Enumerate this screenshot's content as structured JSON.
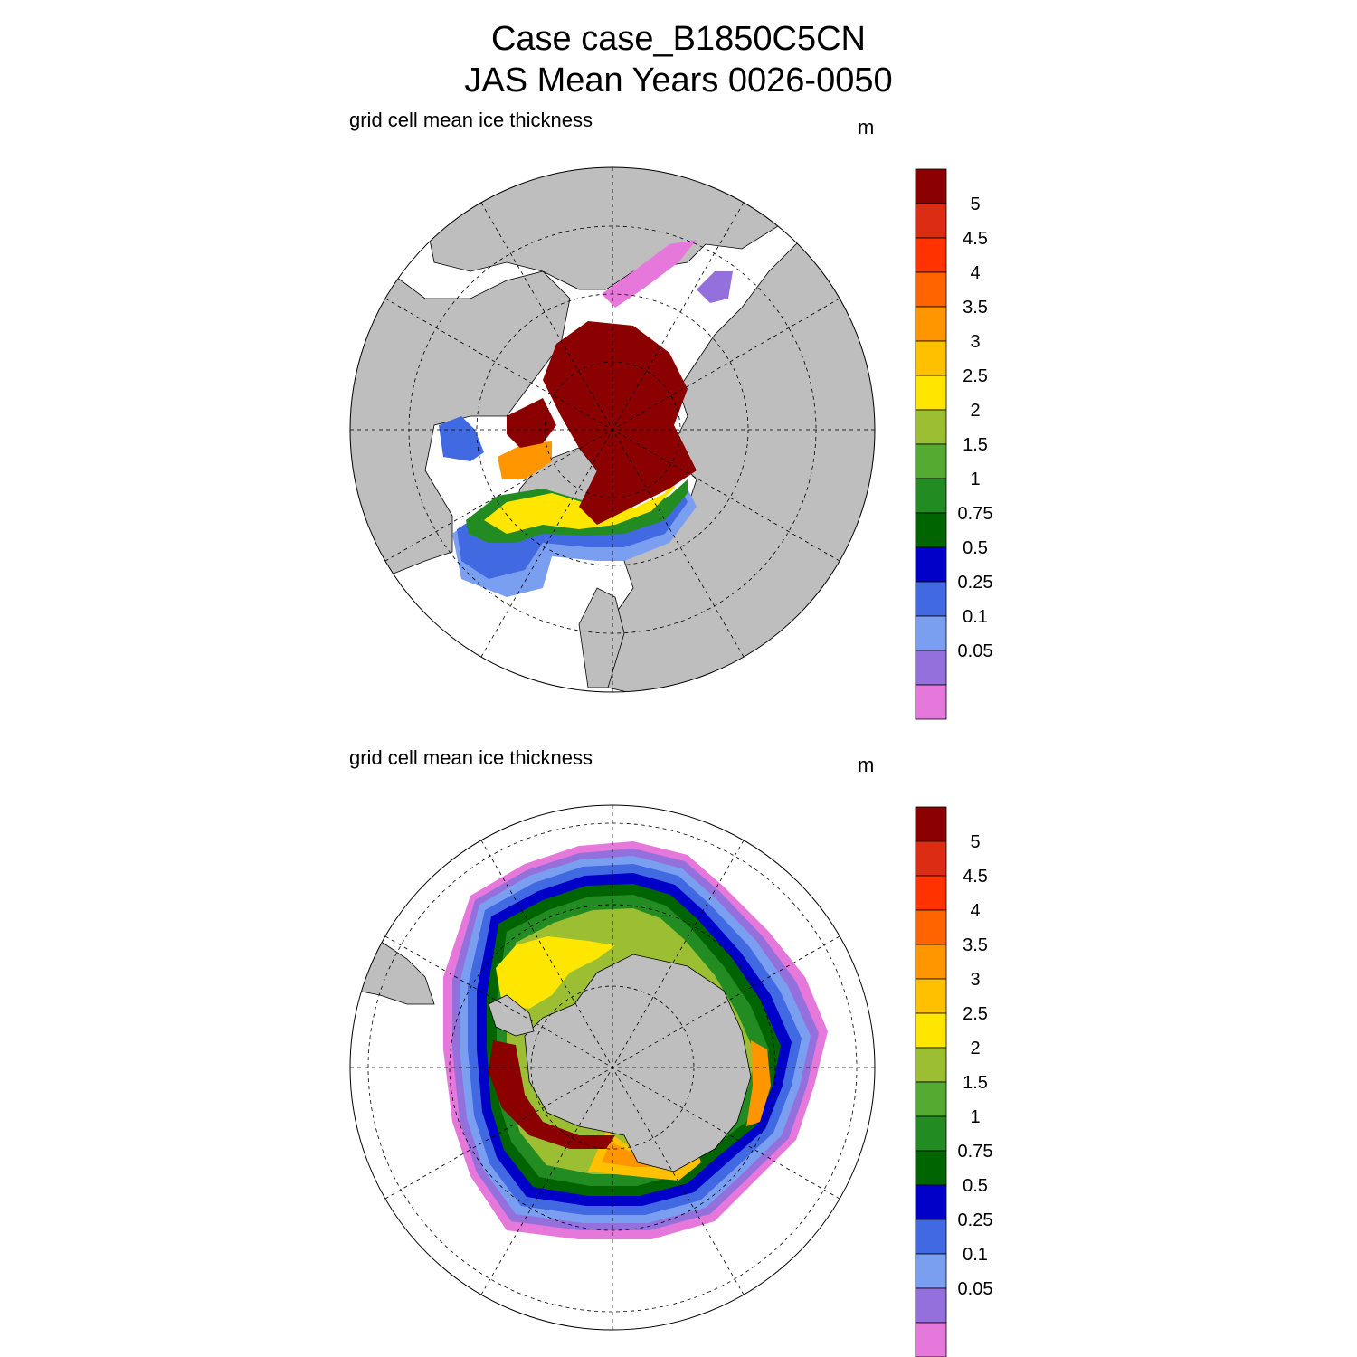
{
  "title_line1": "Case case_B1850C5CN",
  "title_line2": "JAS Mean   Years 0026-0050",
  "panels": [
    {
      "id": "north",
      "subtitle": "grid cell mean ice thickness",
      "units": "m"
    },
    {
      "id": "south",
      "subtitle": "grid cell mean ice thickness",
      "units": "m"
    }
  ],
  "colorbar": {
    "labels": [
      "5",
      "4.5",
      "4",
      "3.5",
      "3",
      "2.5",
      "2",
      "1.5",
      "1",
      "0.75",
      "0.5",
      "0.25",
      "0.1",
      "0.05"
    ],
    "colors": [
      "#8b0000",
      "#dc2d14",
      "#ff3200",
      "#ff6400",
      "#ff9600",
      "#ffc000",
      "#ffe600",
      "#9bbe32",
      "#55aa32",
      "#228b22",
      "#006400",
      "#0000c8",
      "#4169e1",
      "#7b9ff0",
      "#9370db",
      "#e678dc"
    ]
  },
  "colors": {
    "land": "#bebebe",
    "ocean": "#ffffff",
    "grid": "#000000"
  }
}
